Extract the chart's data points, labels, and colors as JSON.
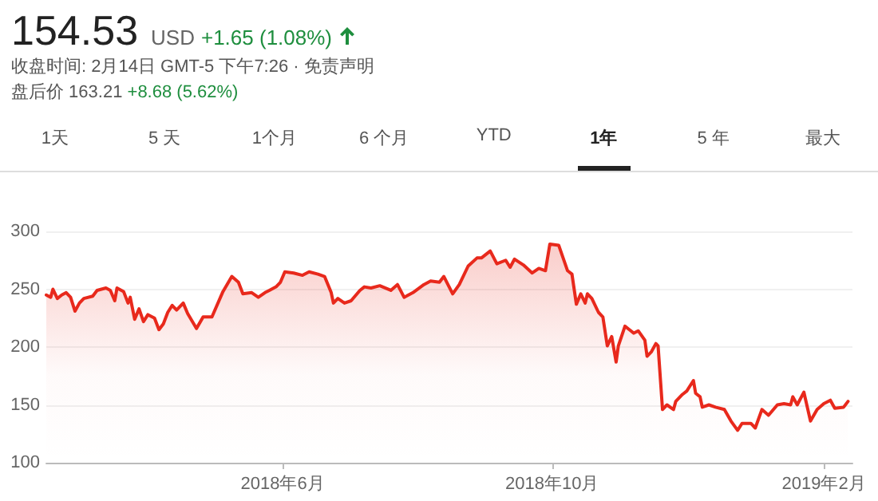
{
  "chart_data": {
    "type": "area",
    "title": "154.53",
    "annotations": [
      "USD",
      "+1.65 (1.08%)",
      "收盘时间: 2月14日 GMT-5 下午7:26 · 免责声明",
      "盘后价 163.21",
      "+8.68 (5.62%)",
      "1天",
      "5 天",
      "1个月",
      "6 个月",
      "YTD",
      "1年",
      "5 年",
      "最大"
    ],
    "x": [
      "2018-02-14",
      "2018-02-16",
      "2018-02-17",
      "2018-02-19",
      "2018-02-21",
      "2018-02-23",
      "2018-02-25",
      "2018-02-27",
      "2018-03-01",
      "2018-03-03",
      "2018-03-07",
      "2018-03-09",
      "2018-03-13",
      "2018-03-15",
      "2018-03-17",
      "2018-03-18",
      "2018-03-21",
      "2018-03-23",
      "2018-03-24",
      "2018-03-26",
      "2018-03-28",
      "2018-03-30",
      "2018-04-01",
      "2018-04-04",
      "2018-04-06",
      "2018-04-08",
      "2018-04-10",
      "2018-04-12",
      "2018-04-14",
      "2018-04-17",
      "2018-04-19",
      "2018-04-23",
      "2018-04-26",
      "2018-04-30",
      "2018-05-05",
      "2018-05-09",
      "2018-05-12",
      "2018-05-14",
      "2018-05-18",
      "2018-05-21",
      "2018-05-24",
      "2018-05-26",
      "2018-05-29",
      "2018-05-31",
      "2018-06-02",
      "2018-06-06",
      "2018-06-10",
      "2018-06-13",
      "2018-06-17",
      "2018-06-20",
      "2018-06-23",
      "2018-06-24",
      "2018-06-26",
      "2018-06-29",
      "2018-07-02",
      "2018-07-06",
      "2018-07-08",
      "2018-07-11",
      "2018-07-15",
      "2018-07-20",
      "2018-07-23",
      "2018-07-26",
      "2018-07-30",
      "2018-08-04",
      "2018-08-07",
      "2018-08-11",
      "2018-08-13",
      "2018-08-17",
      "2018-08-20",
      "2018-08-24",
      "2018-08-28",
      "2018-08-30",
      "2018-09-03",
      "2018-09-06",
      "2018-09-10",
      "2018-09-12",
      "2018-09-14",
      "2018-09-18",
      "2018-09-22",
      "2018-09-25",
      "2018-09-28",
      "2018-09-30",
      "2018-10-04",
      "2018-10-06",
      "2018-10-08",
      "2018-10-10",
      "2018-10-12",
      "2018-10-14",
      "2018-10-16",
      "2018-10-17",
      "2018-10-19",
      "2018-10-22",
      "2018-10-24",
      "2018-10-26",
      "2018-10-28",
      "2018-10-30",
      "2018-10-31",
      "2018-11-03",
      "2018-11-05",
      "2018-11-07",
      "2018-11-09",
      "2018-11-12",
      "2018-11-13",
      "2018-11-15",
      "2018-11-17",
      "2018-11-18",
      "2018-11-20",
      "2018-11-22",
      "2018-11-25",
      "2018-11-26",
      "2018-11-29",
      "2018-12-01",
      "2018-12-04",
      "2018-12-05",
      "2018-12-07",
      "2018-12-08",
      "2018-12-11",
      "2018-12-14",
      "2018-12-18",
      "2018-12-21",
      "2018-12-24",
      "2018-12-26",
      "2018-12-30",
      "2019-01-01",
      "2019-01-04",
      "2019-01-07",
      "2019-01-11",
      "2019-01-14",
      "2019-01-17",
      "2019-01-18",
      "2019-01-20",
      "2019-01-23",
      "2019-01-26",
      "2019-01-29",
      "2019-02-01",
      "2019-02-04",
      "2019-02-06",
      "2019-02-10",
      "2019-02-12"
    ],
    "series": [
      {
        "color": "#e8291c",
        "values": [
          245,
          243,
          250,
          242,
          245,
          247,
          243,
          231,
          238,
          242,
          244,
          249,
          251,
          249,
          240,
          251,
          248,
          238,
          243,
          224,
          233,
          222,
          228,
          225,
          215,
          220,
          230,
          236,
          232,
          238,
          229,
          216,
          226,
          226,
          248,
          261,
          256,
          246,
          247,
          243,
          247,
          249,
          252,
          256,
          265,
          264,
          262,
          265,
          263,
          261,
          247,
          238,
          242,
          238,
          240,
          249,
          252,
          251,
          253,
          249,
          254,
          243,
          247,
          254,
          257,
          256,
          261,
          246,
          254,
          270,
          277,
          277,
          283,
          272,
          275,
          269,
          276,
          271,
          264,
          268,
          266,
          289,
          288,
          277,
          266,
          263,
          237,
          246,
          238,
          246,
          242,
          230,
          226,
          201,
          209,
          187,
          201,
          218,
          215,
          212,
          214,
          206,
          192,
          196,
          203,
          201,
          146,
          150,
          146,
          153,
          159,
          162,
          171,
          160,
          157,
          148,
          150,
          148,
          146,
          136,
          128,
          134,
          134,
          130,
          146,
          141,
          150,
          151,
          150,
          157,
          150,
          161,
          136,
          146,
          151,
          154,
          147,
          148,
          153
        ]
      }
    ],
    "ylim": [
      100,
      300
    ],
    "yticks": [
      100,
      150,
      200,
      250,
      300
    ],
    "xlim": [
      "2018-02-14",
      "2019-02-14"
    ],
    "xticks": [
      {
        "value": "2018-06-01",
        "label": "2018年6月"
      },
      {
        "value": "2018-10-01",
        "label": "2018年10月"
      },
      {
        "value": "2019-02-01",
        "label": "2019年2月"
      }
    ],
    "grid": "y",
    "marker": "none",
    "line_style": "solid"
  }
}
